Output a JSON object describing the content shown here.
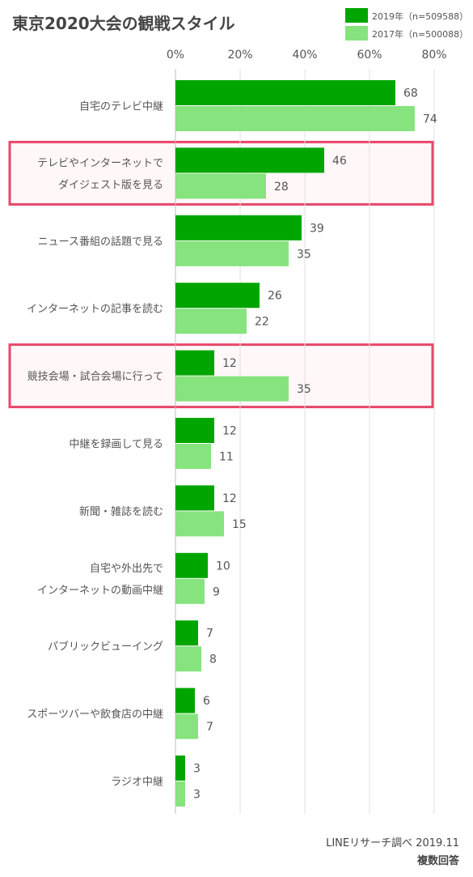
{
  "chart_data": {
    "type": "bar",
    "orientation": "horizontal",
    "title": "東京2020大会の観戦スタイル",
    "x_ticks": [
      "0%",
      "20%",
      "40%",
      "60%",
      "80%"
    ],
    "xlim": [
      0,
      80
    ],
    "grid": true,
    "legend_position": "top-right",
    "categories": [
      [
        "自宅のテレビ中継"
      ],
      [
        "テレビやインターネットで",
        "ダイジェスト版を見る"
      ],
      [
        "ニュース番組の話題で見る"
      ],
      [
        "インターネットの記事を読む"
      ],
      [
        "競技会場・試合会場に行って"
      ],
      [
        "中継を録画して見る"
      ],
      [
        "新聞・雑誌を読む"
      ],
      [
        "自宅や外出先で",
        "インターネットの動画中継"
      ],
      [
        "パブリックビューイング"
      ],
      [
        "スポーツバーや飲食店の中継"
      ],
      [
        "ラジオ中継"
      ]
    ],
    "highlighted": [
      1,
      4
    ],
    "series": [
      {
        "name": "2019年（n=509588）",
        "color": "#00a500",
        "values": [
          68,
          46,
          39,
          26,
          12,
          12,
          12,
          10,
          7,
          6,
          3
        ]
      },
      {
        "name": "2017年（n=500088）",
        "color": "#86e37e",
        "values": [
          74,
          28,
          35,
          22,
          35,
          11,
          15,
          9,
          8,
          7,
          3
        ]
      }
    ],
    "highlight_color": "#e8476a",
    "footnote": [
      "LINEリサーチ調べ 2019.11",
      "複数回答"
    ]
  }
}
